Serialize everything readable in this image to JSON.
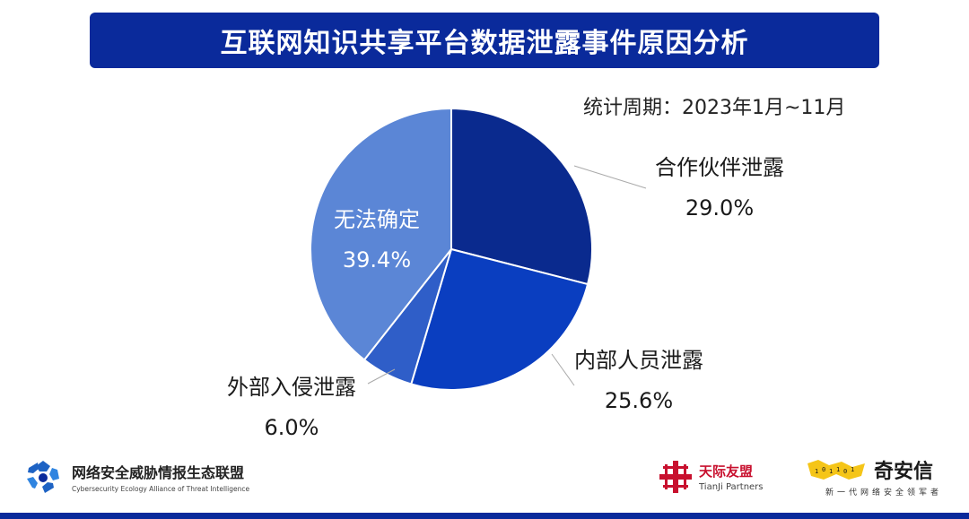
{
  "header": {
    "title": "互联网知识共享平台数据泄露事件原因分析"
  },
  "period": "统计周期：2023年1月~11月",
  "chart_data": {
    "type": "pie",
    "title": "互联网知识共享平台数据泄露事件原因分析",
    "slices": [
      {
        "label": "合作伙伴泄露",
        "value": 29.0,
        "value_label": "29.0%",
        "color": "#0a2a8e"
      },
      {
        "label": "内部人员泄露",
        "value": 25.6,
        "value_label": "25.6%",
        "color": "#0a3ec0"
      },
      {
        "label": "外部入侵泄露",
        "value": 6.0,
        "value_label": "6.0%",
        "color": "#2f5ec8"
      },
      {
        "label": "无法确定",
        "value": 39.4,
        "value_label": "39.4%",
        "color": "#5b86d6"
      }
    ]
  },
  "footer": {
    "org_name": "网络安全威胁情报生态联盟",
    "org_en": "Cybersecurity  Ecology Alliance of Threat Intelligence",
    "tianji_cn": "天际友盟",
    "tianji_en": "TianJi Partners",
    "qianxin_name": "奇安信",
    "qianxin_slogan": "新一代网络安全领军者"
  }
}
